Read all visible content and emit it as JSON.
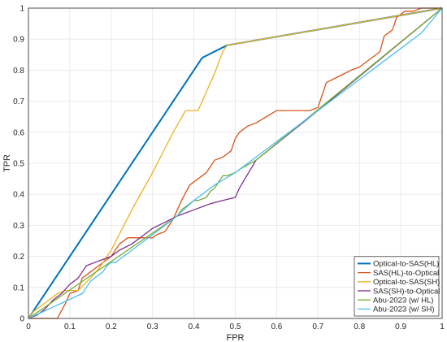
{
  "chart_data": {
    "type": "line",
    "title": "",
    "xlabel": "FPR",
    "ylabel": "TPR",
    "xlim": [
      0,
      1
    ],
    "ylim": [
      0,
      1
    ],
    "xticks": [
      "0",
      "0.1",
      "0.2",
      "0.3",
      "0.4",
      "0.5",
      "0.6",
      "0.7",
      "0.8",
      "0.9",
      "1"
    ],
    "yticks": [
      "0",
      "0.1",
      "0.2",
      "0.3",
      "0.4",
      "0.5",
      "0.6",
      "0.7",
      "0.8",
      "0.9",
      "1"
    ],
    "grid": true,
    "legend_position": "bottom-right",
    "series": [
      {
        "name": "Optical-to-SAS(HL)",
        "color": "#0072BD",
        "x": [
          0,
          0.42,
          0.48,
          1
        ],
        "y": [
          0,
          0.84,
          0.88,
          1
        ]
      },
      {
        "name": "SAS(HL)-to-Optical",
        "color": "#D95319",
        "x": [
          0,
          0.07,
          0.09,
          0.1,
          0.12,
          0.13,
          0.14,
          0.15,
          0.16,
          0.2,
          0.22,
          0.24,
          0.3,
          0.31,
          0.33,
          0.35,
          0.37,
          0.39,
          0.42,
          0.43,
          0.45,
          0.47,
          0.48,
          0.49,
          0.5,
          0.51,
          0.53,
          0.55,
          0.6,
          0.65,
          0.68,
          0.7,
          0.72,
          0.75,
          0.78,
          0.8,
          0.83,
          0.85,
          0.86,
          0.88,
          0.89,
          0.91,
          0.93,
          0.95,
          1
        ],
        "y": [
          0,
          0,
          0.05,
          0.08,
          0.09,
          0.13,
          0.14,
          0.15,
          0.16,
          0.2,
          0.24,
          0.26,
          0.26,
          0.27,
          0.28,
          0.32,
          0.38,
          0.43,
          0.46,
          0.47,
          0.51,
          0.52,
          0.53,
          0.54,
          0.58,
          0.6,
          0.62,
          0.63,
          0.67,
          0.67,
          0.67,
          0.68,
          0.76,
          0.78,
          0.8,
          0.81,
          0.84,
          0.86,
          0.91,
          0.93,
          0.97,
          0.99,
          0.99,
          1,
          1
        ]
      },
      {
        "name": "Optical-to-SAS(SH)",
        "color": "#EDB120",
        "x": [
          0,
          0.01,
          0.02,
          0.05,
          0.06,
          0.07,
          0.09,
          0.12,
          0.15,
          0.17,
          0.2,
          0.25,
          0.3,
          0.35,
          0.38,
          0.39,
          0.41,
          0.43,
          0.45,
          0.47,
          0.48,
          1
        ],
        "y": [
          0,
          0.02,
          0.03,
          0.06,
          0.07,
          0.08,
          0.09,
          0.09,
          0.13,
          0.16,
          0.22,
          0.35,
          0.47,
          0.6,
          0.67,
          0.67,
          0.67,
          0.73,
          0.79,
          0.86,
          0.88,
          1
        ]
      },
      {
        "name": "SAS(SH)-to-Optical",
        "color": "#7E2F8E",
        "x": [
          0,
          0.02,
          0.04,
          0.06,
          0.08,
          0.1,
          0.12,
          0.14,
          0.16,
          0.18,
          0.2,
          0.22,
          0.25,
          0.28,
          0.3,
          0.33,
          0.36,
          0.4,
          0.44,
          0.47,
          0.5,
          0.51,
          0.55,
          0.7,
          1
        ],
        "y": [
          0,
          0.01,
          0.03,
          0.06,
          0.08,
          0.11,
          0.13,
          0.17,
          0.18,
          0.19,
          0.2,
          0.22,
          0.24,
          0.27,
          0.29,
          0.31,
          0.33,
          0.35,
          0.37,
          0.38,
          0.39,
          0.42,
          0.51,
          0.67,
          1
        ]
      },
      {
        "name": "Abu-2023 (w/ HL)",
        "color": "#77AC30",
        "x": [
          0,
          0.36,
          0.37,
          0.38,
          0.39,
          0.4,
          0.41,
          0.43,
          0.44,
          0.45,
          0.46,
          0.47,
          0.48,
          0.5,
          0.51,
          0.55,
          1
        ],
        "y": [
          0,
          0.33,
          0.35,
          0.36,
          0.37,
          0.38,
          0.38,
          0.39,
          0.41,
          0.42,
          0.44,
          0.46,
          0.46,
          0.47,
          0.48,
          0.51,
          1
        ]
      },
      {
        "name": "Abu-2023 (w/ SH)",
        "color": "#4DBEEE",
        "x": [
          0,
          0.13,
          0.14,
          0.15,
          0.16,
          0.17,
          0.18,
          0.19,
          0.2,
          0.21,
          0.22,
          0.23,
          0.25,
          0.3,
          0.35,
          0.4,
          0.45,
          0.5,
          0.55,
          0.6,
          0.65,
          0.7,
          0.75,
          0.8,
          0.85,
          0.9,
          0.95,
          1
        ],
        "y": [
          0,
          0.08,
          0.1,
          0.12,
          0.13,
          0.14,
          0.15,
          0.17,
          0.18,
          0.18,
          0.19,
          0.2,
          0.22,
          0.27,
          0.32,
          0.38,
          0.43,
          0.47,
          0.52,
          0.57,
          0.62,
          0.67,
          0.72,
          0.77,
          0.82,
          0.87,
          0.92,
          1
        ]
      }
    ]
  }
}
